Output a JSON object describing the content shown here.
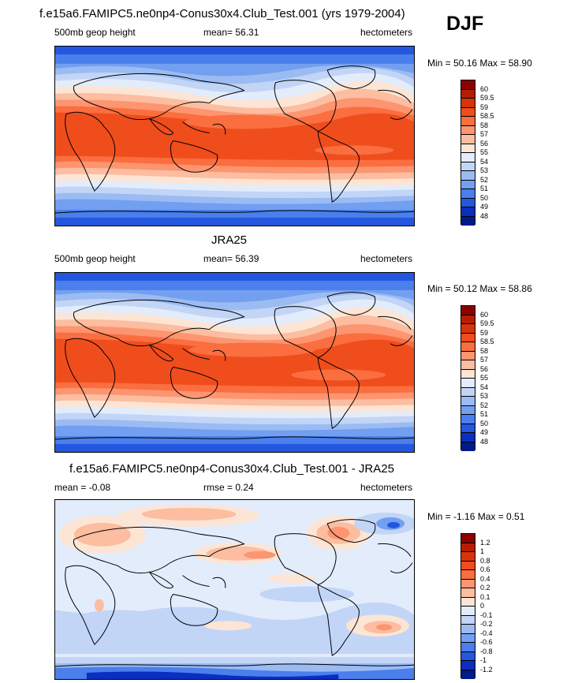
{
  "title": "f.e15a6.FAMIPC5.ne0np4-Conus30x4.Club_Test.001 (yrs 1979-2004)",
  "season": "DJF",
  "panels": [
    {
      "title": "",
      "left": "500mb geop height",
      "center": "mean=  56.31",
      "right": "hectometers",
      "minmax": "Min = 50.16 Max = 58.90",
      "colorbar": {
        "labels": [
          "60",
          "59.5",
          "59",
          "58.5",
          "58",
          "57",
          "56",
          "55",
          "54",
          "53",
          "52",
          "51",
          "50",
          "49",
          "48"
        ],
        "colors": [
          "#8b0000",
          "#b51e05",
          "#d8340c",
          "#f04d1d",
          "#fa6e40",
          "#fc9570",
          "#fcbda0",
          "#fde5d5",
          "#e3ecfb",
          "#c2d5f7",
          "#9bbbf3",
          "#739ff0",
          "#4a7fec",
          "#2457e0",
          "#0a2fc0",
          "#001a8a"
        ]
      }
    },
    {
      "title": "JRA25",
      "left": "500mb geop height",
      "center": "mean=  56.39",
      "right": "hectometers",
      "minmax": "Min =  50.12 Max =  58.86",
      "colorbar": {
        "labels": [
          "60",
          "59.5",
          "59",
          "58.5",
          "58",
          "57",
          "56",
          "55",
          "54",
          "53",
          "52",
          "51",
          "50",
          "49",
          "48"
        ],
        "colors": [
          "#8b0000",
          "#b51e05",
          "#d8340c",
          "#f04d1d",
          "#fa6e40",
          "#fc9570",
          "#fcbda0",
          "#fde5d5",
          "#e3ecfb",
          "#c2d5f7",
          "#9bbbf3",
          "#739ff0",
          "#4a7fec",
          "#2457e0",
          "#0a2fc0",
          "#001a8a"
        ]
      }
    },
    {
      "title": "f.e15a6.FAMIPC5.ne0np4-Conus30x4.Club_Test.001 - JRA25",
      "left": "mean =  -0.08",
      "center": "rmse =   0.24",
      "right": "hectometers",
      "minmax": "Min =  -1.16 Max =   0.51",
      "colorbar": {
        "labels": [
          "1.2",
          "1",
          "0.8",
          "0.6",
          "0.4",
          "0.2",
          "0.1",
          "0",
          "-0.1",
          "-0.2",
          "-0.4",
          "-0.6",
          "-0.8",
          "-1",
          "-1.2"
        ],
        "colors": [
          "#8b0000",
          "#b51e05",
          "#d8340c",
          "#f04d1d",
          "#fa6e40",
          "#fc9570",
          "#fcbda0",
          "#fde5d5",
          "#e3ecfb",
          "#c2d5f7",
          "#9bbbf3",
          "#739ff0",
          "#4a7fec",
          "#2457e0",
          "#0a2fc0",
          "#001a8a"
        ]
      }
    }
  ]
}
